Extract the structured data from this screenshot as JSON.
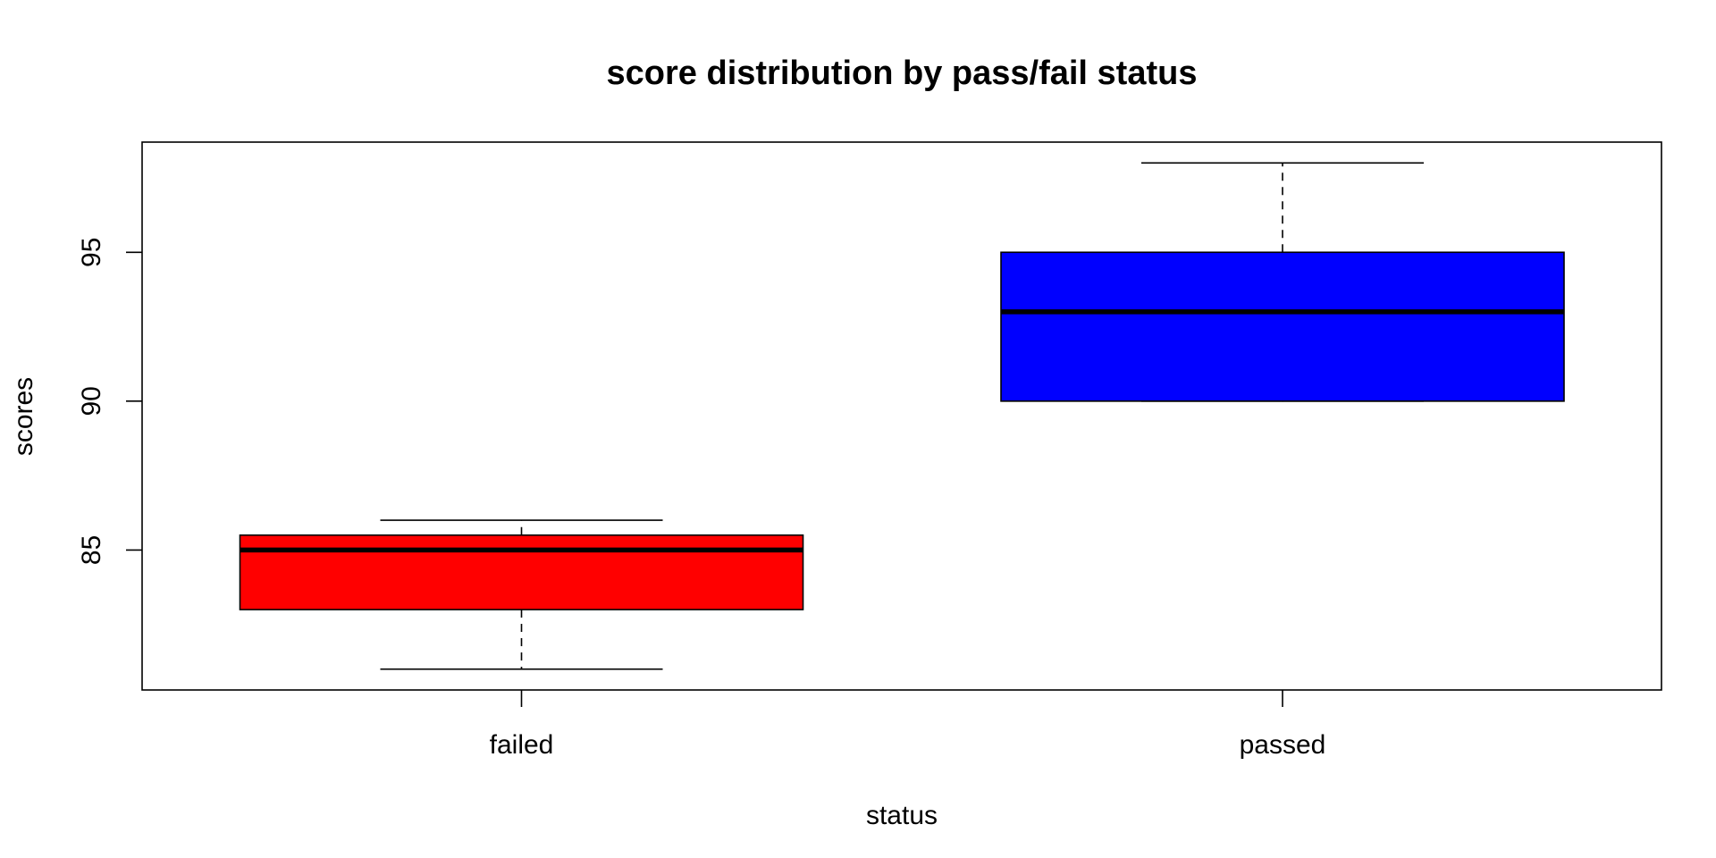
{
  "chart_data": {
    "type": "boxplot",
    "title": "score distribution by pass/fail status",
    "xlabel": "status",
    "ylabel": "scores",
    "categories": [
      "failed",
      "passed"
    ],
    "boxes": [
      {
        "category": "failed",
        "min": 81,
        "q1": 83,
        "median": 85,
        "q3": 85.5,
        "max": 86,
        "fill": "#ff0000"
      },
      {
        "category": "passed",
        "min": 90,
        "q1": 90,
        "median": 93,
        "q3": 95,
        "max": 98,
        "fill": "#0000ff"
      }
    ],
    "yticks": [
      85,
      90,
      95
    ],
    "ylim": [
      80.3,
      98.7
    ],
    "grid": false,
    "legend": "none"
  }
}
